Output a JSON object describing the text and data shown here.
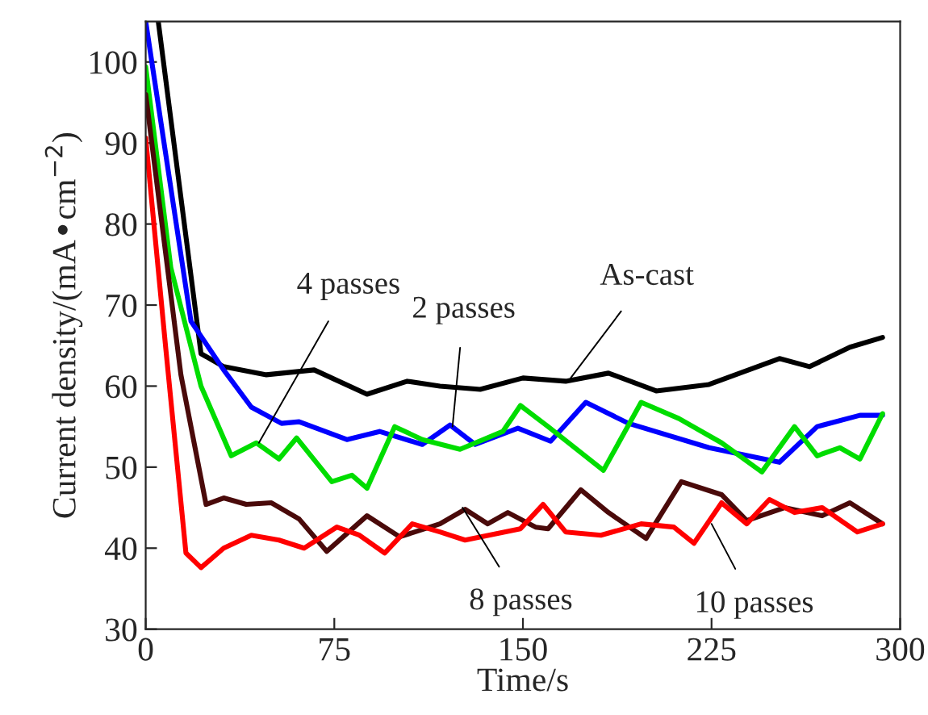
{
  "chart_data": {
    "type": "line",
    "xlabel": "Time/s",
    "ylabel": "Current density/(mA•cm$^{−2}$)",
    "xlim": [
      0,
      300
    ],
    "ylim": [
      30,
      105
    ],
    "xticks": [
      0,
      75,
      150,
      225,
      300
    ],
    "yticks": [
      30,
      40,
      50,
      60,
      70,
      80,
      90,
      100
    ],
    "grid": false,
    "line_style": "solid",
    "marker": "none",
    "series": [
      {
        "color": "#000000",
        "x": [
          5,
          22,
          31,
          48,
          67,
          88,
          104,
          117,
          133,
          150,
          167,
          184,
          203,
          224,
          252,
          264,
          280,
          293
        ],
        "values": [
          105,
          64,
          62.4,
          61.4,
          62,
          59,
          60.6,
          60,
          59.6,
          61,
          60.6,
          61.6,
          59.4,
          60.2,
          63.4,
          62.4,
          64.8,
          66
        ]
      },
      {
        "color": "#0000ff",
        "x": [
          0,
          18,
          31,
          42,
          54,
          61,
          80,
          93,
          110,
          121,
          131,
          148,
          161,
          175,
          192,
          224,
          252,
          267,
          284,
          293
        ],
        "values": [
          105,
          68,
          62,
          57.4,
          55.4,
          55.6,
          53.4,
          54.4,
          52.8,
          55.2,
          52.8,
          54.8,
          53.2,
          58,
          55.4,
          52.4,
          50.6,
          55,
          56.4,
          56.4
        ]
      },
      {
        "color": "#00dd00",
        "x": [
          0,
          10,
          22,
          34,
          44,
          53,
          60,
          74,
          82,
          88,
          99,
          110,
          125,
          142,
          149,
          160,
          182,
          197,
          212,
          229,
          245,
          258,
          267,
          276,
          284,
          293
        ],
        "values": [
          99.4,
          74.6,
          60,
          51.4,
          53,
          51,
          53.6,
          48.2,
          49,
          47.4,
          55,
          53.4,
          52.2,
          54.4,
          57.6,
          55,
          49.6,
          58,
          56,
          53,
          49.4,
          55,
          51.4,
          52.4,
          51,
          56.6
        ]
      },
      {
        "color": "#4a0a0a",
        "x": [
          0,
          14,
          24,
          31,
          40,
          50,
          61,
          72,
          88,
          101,
          117,
          127,
          136,
          144,
          155,
          160,
          173,
          184,
          199,
          213,
          229,
          239,
          254,
          269,
          280,
          293
        ],
        "values": [
          96,
          61.4,
          45.4,
          46.2,
          45.4,
          45.6,
          43.6,
          39.6,
          44,
          41.4,
          43,
          44.8,
          43,
          44.4,
          42.6,
          42.4,
          47.2,
          44.4,
          41.2,
          48.2,
          46.6,
          43.4,
          45,
          44,
          45.6,
          43
        ]
      },
      {
        "color": "#ff0000",
        "x": [
          0,
          8,
          16,
          22,
          31,
          42,
          53,
          63,
          76,
          85,
          95,
          106,
          117,
          127,
          149,
          158,
          167,
          181,
          197,
          210,
          218,
          229,
          239,
          248,
          258,
          269,
          283,
          293
        ],
        "values": [
          90.6,
          64.6,
          39.4,
          37.6,
          40,
          41.6,
          41,
          40,
          42.6,
          41.6,
          39.4,
          43,
          42,
          41,
          42.4,
          45.4,
          42,
          41.6,
          43,
          42.6,
          40.6,
          45.6,
          43,
          46,
          44.4,
          45,
          42,
          43
        ]
      }
    ],
    "annotations": [
      {
        "text": "As-cast",
        "x": 169,
        "y": 61
      },
      {
        "text": "2 passes",
        "x": 122,
        "y": 55
      },
      {
        "text": "4 passes",
        "x": 45,
        "y": 53
      },
      {
        "text": "8 passes",
        "x": 126,
        "y": 45
      },
      {
        "text": "10 passes",
        "x": 225,
        "y": 43
      }
    ]
  }
}
